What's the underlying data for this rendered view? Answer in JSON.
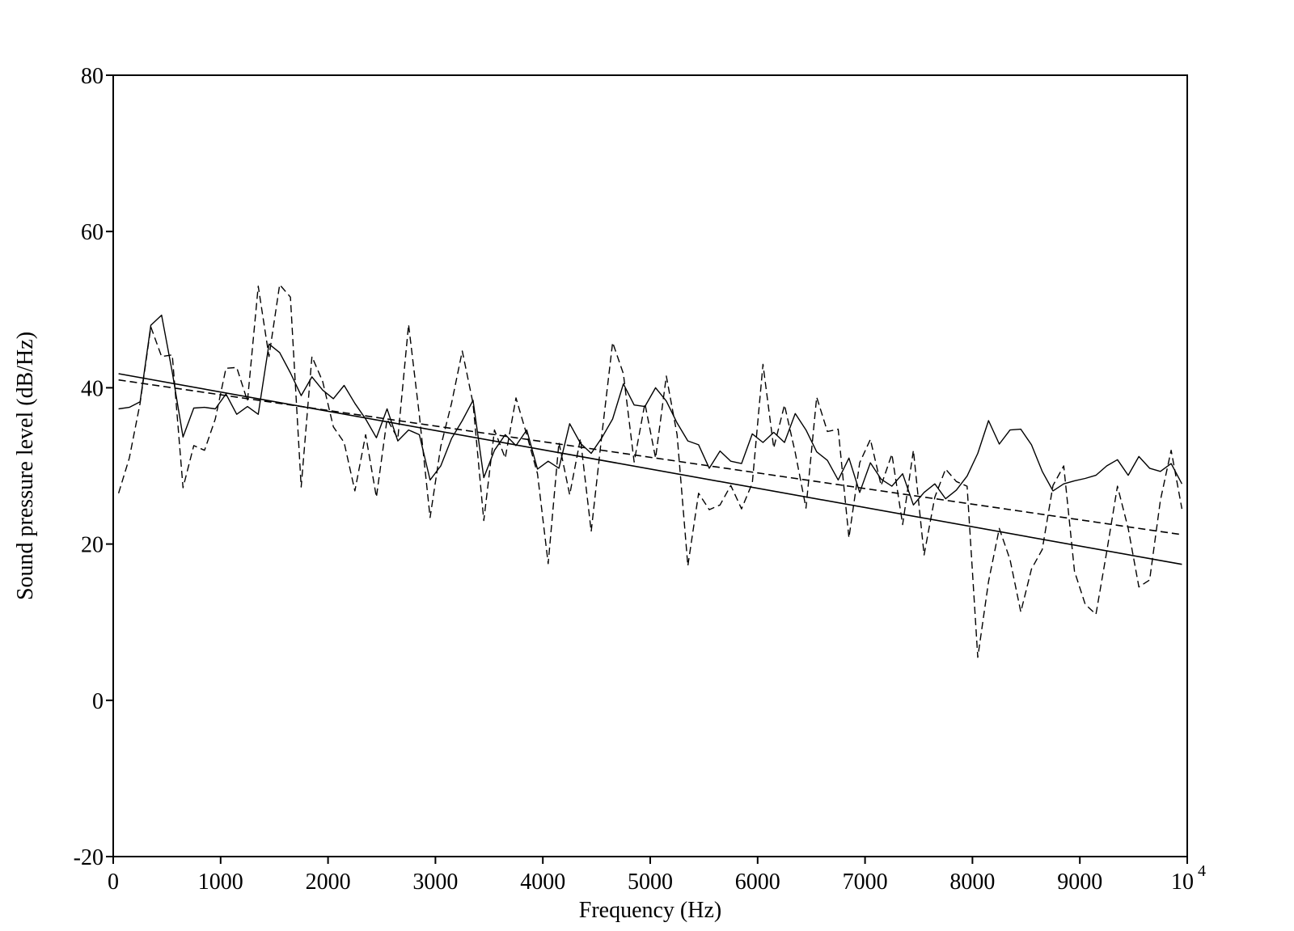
{
  "chart_data": {
    "type": "line",
    "title": "",
    "xlabel": "Frequency (Hz)",
    "ylabel": "Sound pressure level (dB/Hz)",
    "xlim": [
      0,
      10000
    ],
    "ylim": [
      -20,
      80
    ],
    "x_ticks": [
      {
        "value": 0,
        "label": "0"
      },
      {
        "value": 1000,
        "label": "1000"
      },
      {
        "value": 2000,
        "label": "2000"
      },
      {
        "value": 3000,
        "label": "3000"
      },
      {
        "value": 4000,
        "label": "4000"
      },
      {
        "value": 5000,
        "label": "5000"
      },
      {
        "value": 6000,
        "label": "6000"
      },
      {
        "value": 7000,
        "label": "7000"
      },
      {
        "value": 8000,
        "label": "8000"
      },
      {
        "value": 9000,
        "label": "9000"
      },
      {
        "value": 10000,
        "label": "10",
        "exponent": "4"
      }
    ],
    "y_ticks": [
      {
        "value": -20,
        "label": "-20"
      },
      {
        "value": 0,
        "label": "0"
      },
      {
        "value": 20,
        "label": "20"
      },
      {
        "value": 40,
        "label": "40"
      },
      {
        "value": 60,
        "label": "60"
      },
      {
        "value": 80,
        "label": "80"
      }
    ],
    "grid": false,
    "legend": "none",
    "series": [
      {
        "style": "solid",
        "color": "#000000",
        "x": [
          50,
          150,
          250,
          350,
          450,
          550,
          650,
          750,
          850,
          950,
          1050,
          1150,
          1250,
          1350,
          1450,
          1550,
          1650,
          1750,
          1850,
          1950,
          2050,
          2150,
          2250,
          2350,
          2450,
          2550,
          2650,
          2750,
          2850,
          2950,
          3050,
          3150,
          3250,
          3350,
          3450,
          3550,
          3650,
          3750,
          3850,
          3950,
          4050,
          4150,
          4250,
          4350,
          4450,
          4550,
          4650,
          4750,
          4850,
          4950,
          5050,
          5150,
          5250,
          5350,
          5450,
          5550,
          5650,
          5750,
          5850,
          5950,
          6050,
          6150,
          6250,
          6350,
          6450,
          6550,
          6650,
          6750,
          6850,
          6950,
          7050,
          7150,
          7250,
          7350,
          7450,
          7550,
          7650,
          7750,
          7850,
          7950,
          8050,
          8150,
          8250,
          8350,
          8450,
          8550,
          8650,
          8750,
          8850,
          8950,
          9050,
          9150,
          9250,
          9350,
          9450,
          9550,
          9650,
          9750,
          9850,
          9950
        ],
        "y": [
          37.3,
          37.5,
          38.2,
          48.0,
          49.3,
          42.0,
          33.7,
          37.4,
          37.5,
          37.3,
          39.2,
          36.6,
          37.6,
          36.6,
          45.6,
          44.5,
          41.9,
          39.0,
          41.4,
          39.7,
          38.6,
          40.3,
          38.0,
          36.0,
          33.6,
          37.3,
          33.2,
          34.6,
          34.0,
          28.2,
          30.0,
          33.5,
          35.8,
          38.4,
          28.5,
          32.0,
          34.0,
          32.6,
          34.6,
          29.6,
          30.6,
          29.7,
          35.4,
          32.9,
          31.6,
          33.6,
          36.0,
          40.5,
          37.8,
          37.6,
          40.0,
          38.3,
          35.5,
          33.2,
          32.7,
          29.7,
          31.9,
          30.6,
          30.3,
          34.1,
          33.0,
          34.3,
          33.0,
          36.7,
          34.6,
          31.8,
          30.7,
          28.2,
          31.0,
          26.6,
          30.4,
          28.3,
          27.4,
          29.0,
          25.0,
          26.6,
          27.7,
          25.8,
          26.9,
          28.7,
          31.6,
          35.8,
          32.8,
          34.6,
          34.7,
          32.7,
          29.3,
          26.8,
          27.7,
          28.1,
          28.4,
          28.8,
          30.0,
          30.8,
          28.8,
          31.2,
          29.7,
          29.3,
          30.3,
          27.7
        ]
      },
      {
        "style": "dashed",
        "color": "#000000",
        "x": [
          50,
          150,
          250,
          350,
          450,
          550,
          650,
          750,
          850,
          950,
          1050,
          1150,
          1250,
          1350,
          1450,
          1550,
          1650,
          1750,
          1850,
          1950,
          2050,
          2150,
          2250,
          2350,
          2450,
          2550,
          2650,
          2750,
          2850,
          2950,
          3050,
          3150,
          3250,
          3350,
          3450,
          3550,
          3650,
          3750,
          3850,
          3950,
          4050,
          4150,
          4250,
          4350,
          4450,
          4550,
          4650,
          4750,
          4850,
          4950,
          5050,
          5150,
          5250,
          5350,
          5450,
          5550,
          5650,
          5750,
          5850,
          5950,
          6050,
          6150,
          6250,
          6350,
          6450,
          6550,
          6650,
          6750,
          6850,
          6950,
          7050,
          7150,
          7250,
          7350,
          7450,
          7550,
          7650,
          7750,
          7850,
          7950,
          8050,
          8150,
          8250,
          8350,
          8450,
          8550,
          8650,
          8750,
          8850,
          8950,
          9050,
          9150,
          9250,
          9350,
          9450,
          9550,
          9650,
          9750,
          9850,
          9950
        ],
        "y": [
          26.5,
          31.0,
          38.0,
          47.8,
          44.0,
          44.2,
          27.2,
          32.6,
          32.0,
          36.0,
          42.5,
          42.6,
          38.3,
          53.0,
          44.0,
          53.2,
          51.6,
          27.3,
          44.0,
          40.8,
          35.0,
          33.0,
          26.8,
          34.0,
          26.0,
          36.0,
          33.5,
          48.1,
          36.5,
          23.4,
          32.5,
          38.0,
          44.7,
          38.0,
          23.0,
          34.6,
          31.0,
          38.7,
          34.0,
          29.0,
          17.5,
          33.0,
          26.3,
          33.5,
          21.6,
          34.0,
          45.8,
          41.8,
          30.5,
          38.0,
          31.0,
          41.5,
          34.0,
          17.2,
          26.5,
          24.4,
          25.0,
          27.5,
          24.5,
          27.8,
          43.0,
          32.3,
          37.8,
          31.7,
          24.6,
          38.8,
          34.4,
          34.7,
          20.8,
          30.4,
          33.4,
          27.5,
          31.5,
          22.5,
          32.0,
          18.6,
          26.0,
          29.6,
          28.0,
          27.4,
          5.5,
          15.2,
          22.0,
          18.0,
          11.3,
          16.8,
          19.3,
          27.5,
          30.0,
          16.5,
          12.3,
          11.0,
          19.0,
          27.4,
          22.0,
          14.5,
          15.4,
          25.6,
          32.0,
          24.5
        ]
      },
      {
        "style": "solid",
        "color": "#000000",
        "x": [
          50,
          9950
        ],
        "y": [
          41.8,
          17.4
        ]
      },
      {
        "style": "dashed",
        "color": "#000000",
        "x": [
          50,
          9950
        ],
        "y": [
          41.0,
          21.2
        ]
      }
    ]
  }
}
